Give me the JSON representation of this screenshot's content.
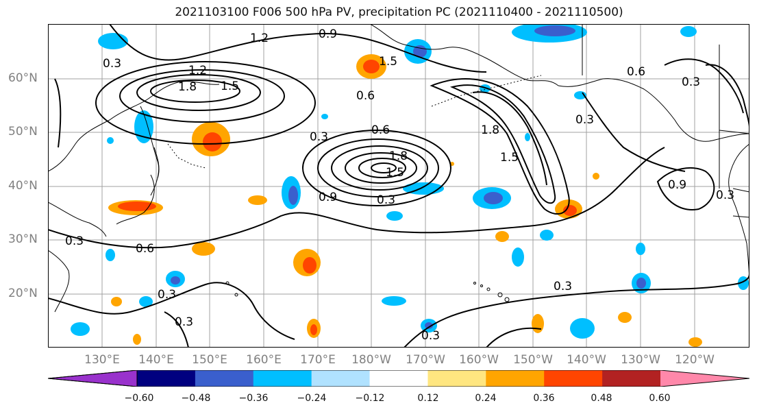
{
  "title": "2021103100 F006 500 hPa PV, precipitation PC (2021110400 - 2021110500)",
  "lat_labels": [
    "60°N",
    "50°N",
    "40°N",
    "30°N",
    "20°N"
  ],
  "lon_labels": [
    "130°E",
    "140°E",
    "150°E",
    "160°E",
    "170°E",
    "180°W",
    "170°W",
    "160°W",
    "150°W",
    "140°W",
    "130°W",
    "120°W"
  ],
  "contour_labels": [
    "0.3",
    "0.6",
    "0.9",
    "1.2",
    "1.5",
    "1.8"
  ],
  "colorbar": {
    "tick_labels": [
      "−0.60",
      "−0.48",
      "−0.36",
      "−0.24",
      "−0.12",
      "0.12",
      "0.24",
      "0.36",
      "0.48",
      "0.60"
    ],
    "colors": [
      "#9932cc",
      "#000080",
      "#3a5fcd",
      "#00bfff",
      "#b0e2ff",
      "#ffffff",
      "#ffe680",
      "#ffa500",
      "#ff4500",
      "#b22222",
      "#ff88aa"
    ]
  }
}
